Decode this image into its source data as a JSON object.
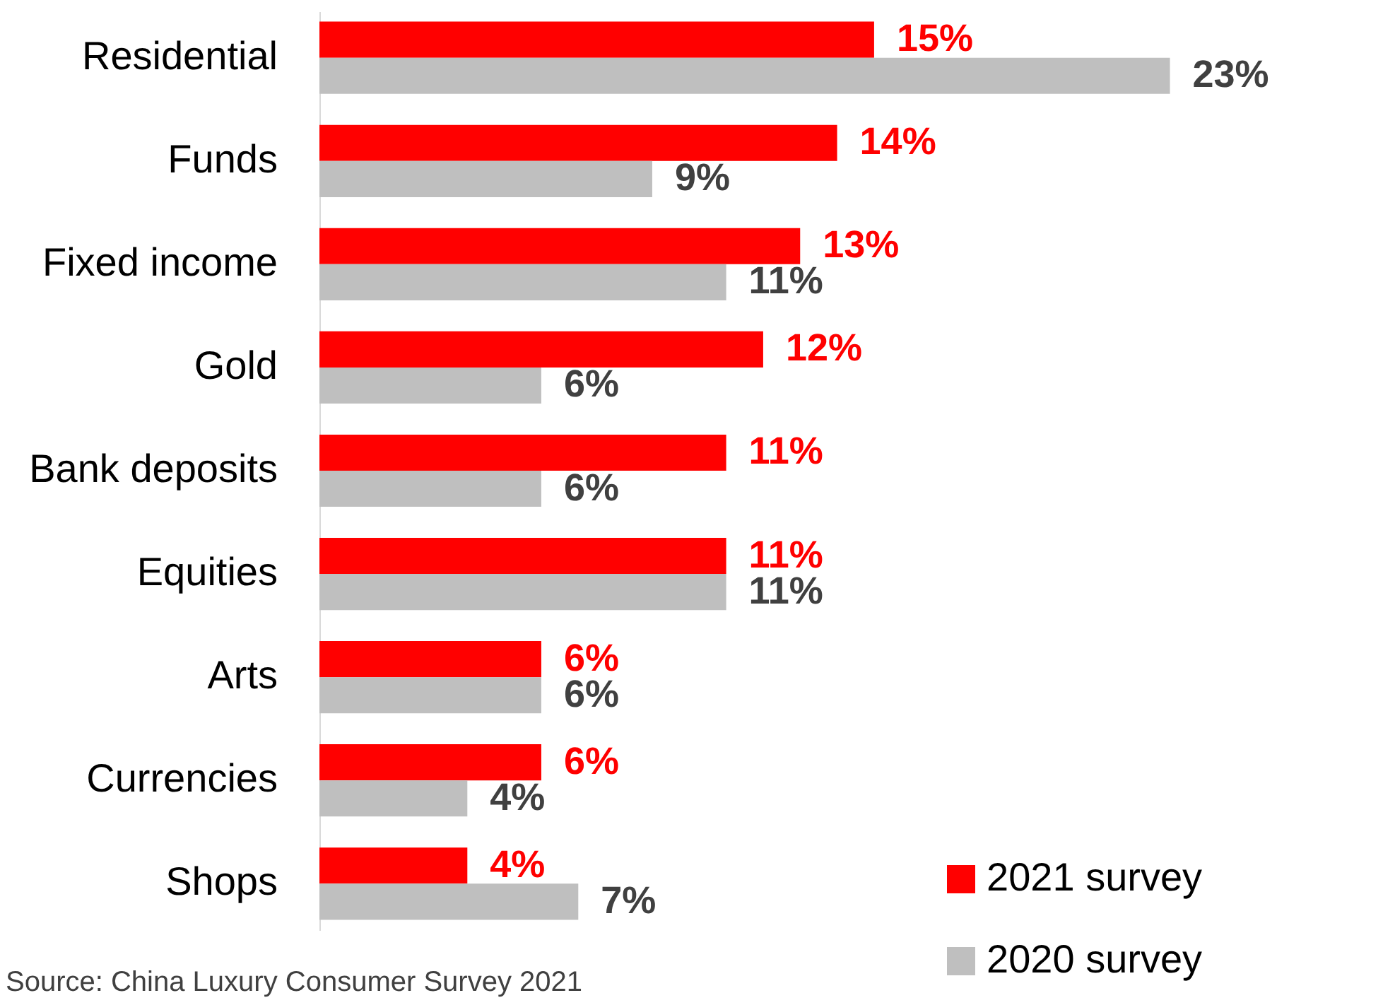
{
  "chart_data": {
    "type": "bar",
    "orientation": "horizontal",
    "categories": [
      "Residential",
      "Funds",
      "Fixed income",
      "Gold",
      "Bank deposits",
      "Equities",
      "Arts",
      "Currencies",
      "Shops"
    ],
    "series": [
      {
        "name": "2021 survey",
        "color": "#ff0000",
        "values": [
          15,
          14,
          13,
          12,
          11,
          11,
          6,
          6,
          4
        ],
        "value_labels": [
          "15%",
          "14%",
          "13%",
          "12%",
          "11%",
          "11%",
          "6%",
          "6%",
          "4%"
        ]
      },
      {
        "name": "2020 survey",
        "color": "#bfbfbf",
        "values": [
          23,
          9,
          11,
          6,
          6,
          11,
          6,
          4,
          7
        ],
        "value_labels": [
          "23%",
          "9%",
          "11%",
          "6%",
          "6%",
          "11%",
          "6%",
          "4%",
          "7%"
        ]
      }
    ],
    "legend": "bottom right",
    "annotations": [
      "Source: China Luxury Consumer Survey 2021"
    ]
  }
}
